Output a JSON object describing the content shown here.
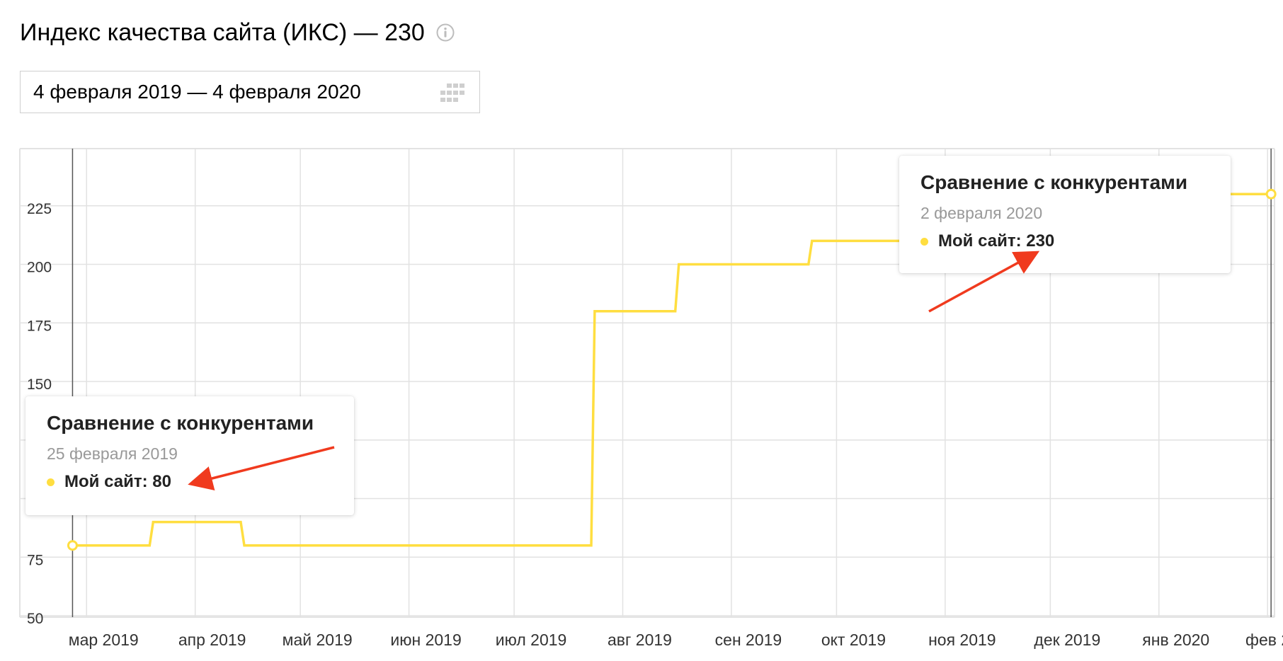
{
  "page": {
    "title": "Индекс качества сайта (ИКС) — 230",
    "info_icon": "info-icon"
  },
  "date_picker": {
    "value": "4 февраля 2019 — 4 февраля 2020",
    "icon": "calendar-grid-icon"
  },
  "colors": {
    "series": "#ffde40",
    "grid": "#e2e2e2",
    "crosshair": "#555555",
    "arrow": "#f03a1e",
    "axis_text": "#333333"
  },
  "chart_data": {
    "type": "line",
    "step": true,
    "y_ticks": [
      "225",
      "200",
      "175",
      "150",
      "",
      "",
      "75",
      "50"
    ],
    "ylim": [
      50,
      250
    ],
    "x_tick_labels": [
      "мар 2019",
      "апр 2019",
      "май 2019",
      "июн 2019",
      "июл 2019",
      "авг 2019",
      "сен 2019",
      "окт 2019",
      "ноя 2019",
      "дек 2019",
      "янв 2020",
      "фев 2..."
    ],
    "grid": true,
    "series": [
      {
        "points": [
          [
            "2019-02-25",
            80
          ],
          [
            "2019-03-19",
            80
          ],
          [
            "2019-03-20",
            90
          ],
          [
            "2019-04-14",
            90
          ],
          [
            "2019-04-15",
            80
          ],
          [
            "2019-07-23",
            80
          ],
          [
            "2019-07-24",
            180
          ],
          [
            "2019-08-16",
            180
          ],
          [
            "2019-08-17",
            200
          ],
          [
            "2019-09-23",
            200
          ],
          [
            "2019-09-24",
            210
          ],
          [
            "2019-11-10",
            210
          ],
          [
            "2019-11-11",
            230
          ],
          [
            "2020-02-02",
            230
          ]
        ]
      }
    ]
  },
  "tooltips": [
    {
      "title": "Сравнение с конкурентами",
      "date": "25 февраля 2019",
      "value_label": "Мой сайт: 80"
    },
    {
      "title": "Сравнение с конкурентами",
      "date": "2 февраля 2020",
      "value_label": "Мой сайт: 230"
    }
  ]
}
